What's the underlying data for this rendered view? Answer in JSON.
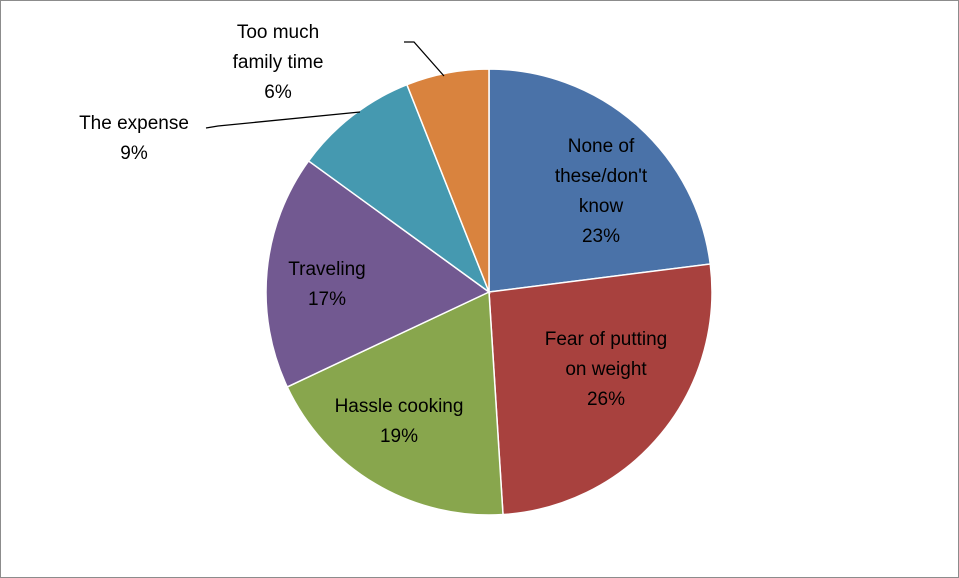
{
  "chart_data": {
    "type": "pie",
    "title": "",
    "start_angle_deg": 0,
    "direction": "clockwise",
    "slices": [
      {
        "label_lines": [
          "None of",
          "these/don't",
          "know"
        ],
        "percent_label": "23%",
        "value": 23,
        "color": "#4a72a8"
      },
      {
        "label_lines": [
          "Fear of putting",
          "on weight"
        ],
        "percent_label": "26%",
        "value": 26,
        "color": "#a8413e"
      },
      {
        "label_lines": [
          "Hassle cooking"
        ],
        "percent_label": "19%",
        "value": 19,
        "color": "#88a64d"
      },
      {
        "label_lines": [
          "Traveling"
        ],
        "percent_label": "17%",
        "value": 17,
        "color": "#725991"
      },
      {
        "label_lines": [
          "The expense"
        ],
        "percent_label": "9%",
        "value": 9,
        "color": "#4599b0"
      },
      {
        "label_lines": [
          "Too much",
          "family time"
        ],
        "percent_label": "6%",
        "value": 6,
        "color": "#d9833e"
      }
    ]
  }
}
